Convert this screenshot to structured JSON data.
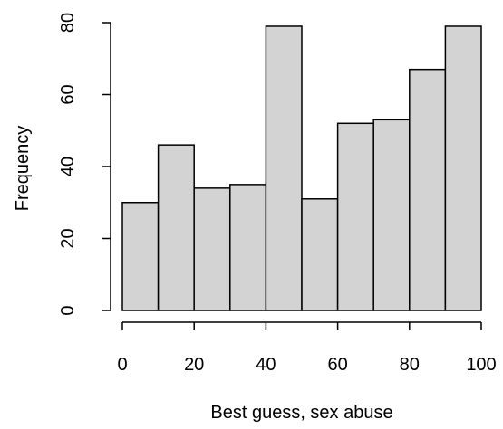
{
  "chart_data": {
    "type": "bar",
    "title": "",
    "xlabel": "Best guess, sex abuse",
    "ylabel": "Frequency",
    "bin_edges": [
      0,
      10,
      20,
      30,
      40,
      50,
      60,
      70,
      80,
      90,
      100
    ],
    "values": [
      30,
      46,
      34,
      35,
      79,
      31,
      52,
      53,
      67,
      79
    ],
    "xlim": [
      0,
      100
    ],
    "ylim": [
      0,
      80
    ],
    "x_ticks": [
      "0",
      "20",
      "40",
      "60",
      "80",
      "100"
    ],
    "y_ticks": [
      "0",
      "20",
      "40",
      "60",
      "80"
    ],
    "grid": false,
    "colors": {
      "bar_fill": "#d3d3d3",
      "bar_stroke": "#000000",
      "axis": "#000000"
    }
  }
}
